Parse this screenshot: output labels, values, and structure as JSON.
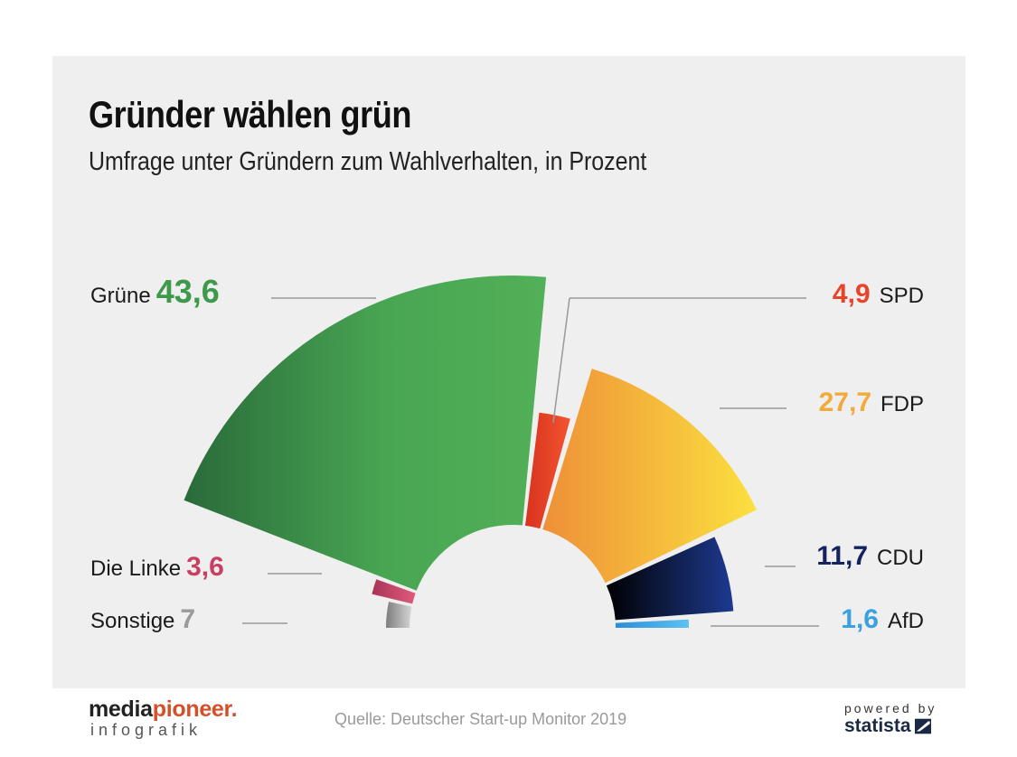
{
  "header": {
    "title": "Gründer wählen grün",
    "subtitle": "Umfrage unter Gründern zum Wahlverhalten, in Prozent"
  },
  "chart_data": {
    "type": "pie",
    "layout": "semicircle-parliament",
    "slices": [
      {
        "label": "Sonstige",
        "value": 7,
        "value_text": "7",
        "color": "#9a9a9a"
      },
      {
        "label": "Die Linke",
        "value": 3.6,
        "value_text": "3,6",
        "color": "#c93f62"
      },
      {
        "label": "Grüne",
        "value": 43.6,
        "value_text": "43,6",
        "color": "#3e9a4a"
      },
      {
        "label": "SPD",
        "value": 4.9,
        "value_text": "4,9",
        "color": "#e8442a"
      },
      {
        "label": "FDP",
        "value": 27.7,
        "value_text": "27,7",
        "color": "#f2aa3a"
      },
      {
        "label": "CDU",
        "value": 11.7,
        "value_text": "11,7",
        "color": "#14235e"
      },
      {
        "label": "AfD",
        "value": 1.6,
        "value_text": "1,6",
        "color": "#3aa0e0"
      }
    ]
  },
  "footer": {
    "logo_part1": "media",
    "logo_part2": "pioneer",
    "logo_dot": ".",
    "logo_sub": "infografik",
    "source": "Quelle: Deutscher Start-up Monitor 2019",
    "powered_by": "powered by",
    "statista": "statista",
    "statista_icon": "statista-logo-icon"
  }
}
